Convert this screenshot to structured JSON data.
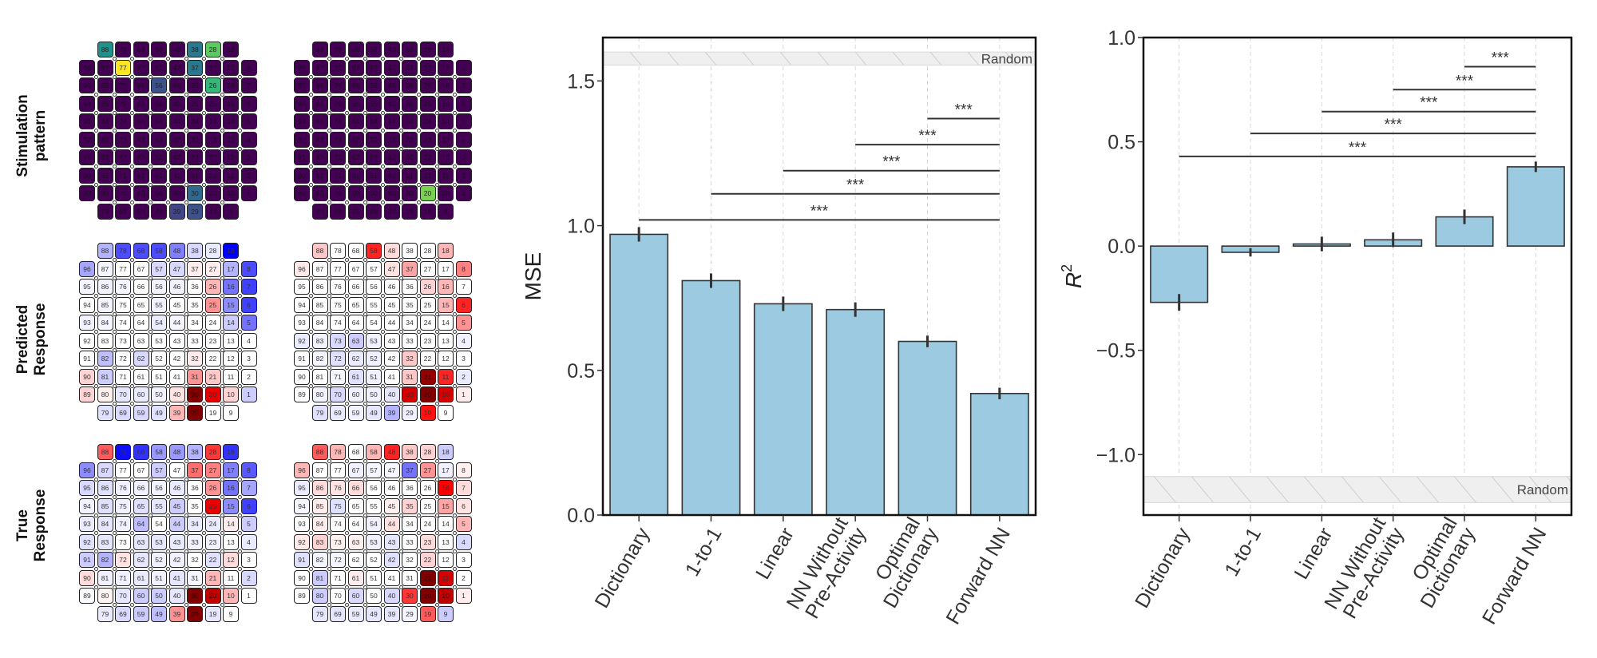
{
  "row_labels": [
    "Stimulation\npattern",
    "Predicted\nResponse",
    "True\nResponse"
  ],
  "electrode_layout": [
    [
      null,
      88,
      78,
      68,
      58,
      48,
      38,
      28,
      18,
      null
    ],
    [
      96,
      87,
      77,
      67,
      57,
      47,
      37,
      27,
      17,
      8
    ],
    [
      95,
      86,
      76,
      66,
      56,
      46,
      36,
      26,
      16,
      7
    ],
    [
      94,
      85,
      75,
      65,
      55,
      45,
      35,
      25,
      15,
      6
    ],
    [
      93,
      84,
      74,
      64,
      54,
      44,
      34,
      24,
      14,
      5
    ],
    [
      92,
      83,
      73,
      63,
      53,
      43,
      33,
      23,
      13,
      4
    ],
    [
      91,
      82,
      72,
      62,
      52,
      42,
      32,
      22,
      12,
      3
    ],
    [
      90,
      81,
      71,
      61,
      51,
      41,
      31,
      21,
      11,
      2
    ],
    [
      89,
      80,
      70,
      60,
      50,
      40,
      30,
      20,
      10,
      1
    ],
    [
      null,
      79,
      69,
      59,
      49,
      39,
      29,
      19,
      9,
      null
    ]
  ],
  "stimulation_patterns": [
    {
      "name": "pattern-a",
      "base_color": "#440154",
      "active": {
        "88": "#21918c",
        "38": "#2a788e",
        "28": "#5ec962",
        "77": "#fde725",
        "37": "#2a788e",
        "56": "#3b528b",
        "26": "#35b779",
        "30": "#31688e",
        "39": "#414487",
        "29": "#3b528b"
      }
    },
    {
      "name": "pattern-b",
      "base_color": "#440154",
      "active": {
        "20": "#7ad151"
      }
    }
  ],
  "response_maps": {
    "predicted_a": {
      "78": -0.7,
      "68": -0.7,
      "58": -0.7,
      "48": -0.5,
      "88": -0.3,
      "38": -0.15,
      "28": -0.08,
      "18": -1.0,
      "96": -0.35,
      "57": -0.15,
      "47": -0.15,
      "37": 0.05,
      "27": 0.05,
      "17": -0.3,
      "8": -0.7,
      "26": 0.2,
      "16": -0.55,
      "7": -0.75,
      "25": 0.3,
      "15": -0.45,
      "6": -0.75,
      "14": -0.2,
      "5": -0.55,
      "82": -0.25,
      "62": -0.15,
      "32": 0.05,
      "90": 0.12,
      "81": -0.2,
      "31": 0.3,
      "21": 0.15,
      "89": 0.12,
      "80": 0.04,
      "70": -0.1,
      "60": -0.08,
      "50": -0.05,
      "40": 0.08,
      "30": 1.0,
      "20": 0.75,
      "10": 0.12,
      "1": -0.2,
      "79": -0.12,
      "69": -0.15,
      "59": -0.15,
      "49": -0.12,
      "39": 0.2,
      "29": 1.0,
      "87": -0.04,
      "95": -0.04,
      "86": -0.05,
      "76": -0.04,
      "56": -0.05,
      "46": -0.05,
      "85": -0.04,
      "55": -0.05,
      "93": -0.05,
      "84": -0.04,
      "54": -0.08,
      "44": -0.04
    },
    "predicted_b": {
      "88": 0.15,
      "58": 0.6,
      "48": 0.1,
      "18": 0.2,
      "96": 0.06,
      "47": 0.08,
      "37": 0.25,
      "8": 0.35,
      "26": 0.12,
      "16": 0.2,
      "15": 0.2,
      "6": 0.6,
      "5": 0.3,
      "92": -0.08,
      "83": -0.05,
      "73": -0.15,
      "63": -0.2,
      "53": -0.05,
      "4": -0.06,
      "72": -0.12,
      "62": -0.08,
      "52": -0.06,
      "32": 0.15,
      "71": -0.04,
      "61": -0.12,
      "51": -0.06,
      "31": 0.15,
      "21": 0.95,
      "11": 0.6,
      "2": -0.08,
      "80": -0.05,
      "70": -0.15,
      "60": -0.06,
      "50": -0.06,
      "40": -0.1,
      "30": 0.8,
      "20": 1.0,
      "10": 0.8,
      "1": 0.05,
      "79": -0.12,
      "69": -0.08,
      "59": -0.06,
      "49": -0.1,
      "39": -0.3,
      "29": -0.06,
      "19": 0.65,
      "82": -0.04
    },
    "true_a": {
      "88": 0.45,
      "78": -0.95,
      "68": -0.8,
      "58": -0.4,
      "48": -0.4,
      "38": -0.3,
      "28": 0.55,
      "18": -0.8,
      "96": -0.45,
      "87": -0.15,
      "57": -0.2,
      "37": 0.4,
      "27": 0.35,
      "17": -0.5,
      "8": -0.65,
      "95": -0.15,
      "86": -0.12,
      "76": -0.06,
      "66": -0.06,
      "56": -0.05,
      "46": -0.08,
      "26": 0.3,
      "16": -0.55,
      "7": -0.35,
      "94": -0.05,
      "85": -0.12,
      "75": -0.06,
      "65": -0.12,
      "55": -0.1,
      "45": -0.2,
      "25": 0.75,
      "15": -0.45,
      "6": -0.75,
      "93": -0.08,
      "84": -0.1,
      "74": -0.06,
      "64": -0.25,
      "44": -0.2,
      "34": -0.08,
      "24": -0.08,
      "14": 0.05,
      "5": -0.2,
      "92": -0.12,
      "83": -0.1,
      "63": -0.1,
      "53": -0.1,
      "43": -0.08,
      "33": -0.05,
      "23": -0.06,
      "4": -0.08,
      "91": -0.2,
      "82": -0.3,
      "72": 0.08,
      "62": -0.1,
      "52": -0.06,
      "42": -0.06,
      "22": -0.12,
      "12": 0.1,
      "90": 0.1,
      "81": -0.06,
      "71": -0.06,
      "61": -0.08,
      "51": -0.06,
      "41": -0.1,
      "31": -0.04,
      "21": 0.2,
      "2": -0.15,
      "89": -0.02,
      "80": 0.03,
      "70": -0.1,
      "60": -0.2,
      "50": -0.2,
      "40": -0.1,
      "30": 1.0,
      "20": 0.85,
      "10": 0.2,
      "79": -0.08,
      "69": -0.15,
      "59": -0.2,
      "49": -0.25,
      "39": 0.3,
      "29": 1.0,
      "19": -0.1
    },
    "true_b": {
      "88": 0.45,
      "78": 0.2,
      "58": 0.2,
      "48": 0.6,
      "38": 0.15,
      "28": 0.12,
      "18": -0.2,
      "96": 0.2,
      "67": -0.06,
      "57": -0.04,
      "47": -0.04,
      "37": -0.55,
      "27": 0.3,
      "17": -0.06,
      "8": 0.04,
      "95": -0.08,
      "86": 0.1,
      "76": 0.08,
      "66": 0.1,
      "16": 0.7,
      "7": 0.1,
      "94": -0.04,
      "85": 0.05,
      "75": -0.12,
      "45": 0.04,
      "35": 0.12,
      "15": 0.25,
      "6": 0.08,
      "84": 0.05,
      "54": -0.06,
      "44": 0.08,
      "5": 0.2,
      "92": 0.06,
      "83": 0.12,
      "73": 0.04,
      "63": 0.04,
      "53": -0.06,
      "43": -0.1,
      "23": 0.1,
      "4": -0.15,
      "91": -0.12,
      "82": -0.04,
      "72": -0.04,
      "42": -0.12,
      "22": 0.12,
      "81": -0.2,
      "61": 0.05,
      "21": 1.0,
      "11": 0.8,
      "80": -0.2,
      "60": -0.15,
      "40": -0.15,
      "30": 0.55,
      "20": 1.0,
      "10": 0.85,
      "1": 0.05,
      "79": -0.1,
      "69": -0.1,
      "59": -0.08,
      "49": -0.1,
      "39": -0.1,
      "29": -0.04,
      "19": 0.45,
      "9": -0.2
    }
  },
  "chart_data": [
    {
      "type": "bar",
      "title": "",
      "xlabel": "",
      "ylabel": "MSE",
      "categories": [
        "Dictionary",
        "1-to-1",
        "Linear",
        "NN Without\nPre-Activity",
        "Optimal\nDictionary",
        "Forward NN"
      ],
      "values": [
        0.97,
        0.81,
        0.73,
        0.71,
        0.6,
        0.42
      ],
      "errors": [
        0.025,
        0.025,
        0.025,
        0.025,
        0.02,
        0.02
      ],
      "ylim": [
        0.0,
        1.65
      ],
      "yticks": [
        0.0,
        0.5,
        1.0,
        1.5
      ],
      "ytick_labels": [
        "0.0",
        "0.5",
        "1.0",
        "1.5"
      ],
      "bar_color": "#9ccae0",
      "grid": "vertical-dashed",
      "reference_band": {
        "label": "Random",
        "ymin": 1.555,
        "ymax": 1.6
      },
      "significance": [
        {
          "from": 0,
          "to": 5,
          "y": 1.02,
          "label": "***"
        },
        {
          "from": 1,
          "to": 5,
          "y": 1.11,
          "label": "***"
        },
        {
          "from": 2,
          "to": 5,
          "y": 1.19,
          "label": "***"
        },
        {
          "from": 3,
          "to": 5,
          "y": 1.28,
          "label": "***"
        },
        {
          "from": 4,
          "to": 5,
          "y": 1.37,
          "label": "***"
        }
      ]
    },
    {
      "type": "bar",
      "title": "",
      "xlabel": "",
      "ylabel": "R",
      "ylabel_sup": "2",
      "categories": [
        "Dictionary",
        "1-to-1",
        "Linear",
        "NN Without\nPre-Activity",
        "Optimal\nDictionary",
        "Forward NN"
      ],
      "values": [
        -0.27,
        -0.03,
        0.01,
        0.03,
        0.14,
        0.38
      ],
      "errors": [
        0.04,
        0.02,
        0.035,
        0.035,
        0.035,
        0.025
      ],
      "ylim": [
        -1.29,
        1.0
      ],
      "yticks": [
        -1.0,
        -0.5,
        0.0,
        0.5,
        1.0
      ],
      "ytick_labels": [
        "−1.0",
        "−0.5",
        "0.0",
        "0.5",
        "1.0"
      ],
      "bar_color": "#9ccae0",
      "grid": "vertical-dashed",
      "reference_band": {
        "label": "Random",
        "ymin": -1.23,
        "ymax": -1.105
      },
      "significance": [
        {
          "from": 0,
          "to": 5,
          "y": 0.43,
          "label": "***"
        },
        {
          "from": 1,
          "to": 5,
          "y": 0.54,
          "label": "***"
        },
        {
          "from": 2,
          "to": 5,
          "y": 0.645,
          "label": "***"
        },
        {
          "from": 3,
          "to": 5,
          "y": 0.75,
          "label": "***"
        },
        {
          "from": 4,
          "to": 5,
          "y": 0.86,
          "label": "***"
        }
      ]
    }
  ]
}
